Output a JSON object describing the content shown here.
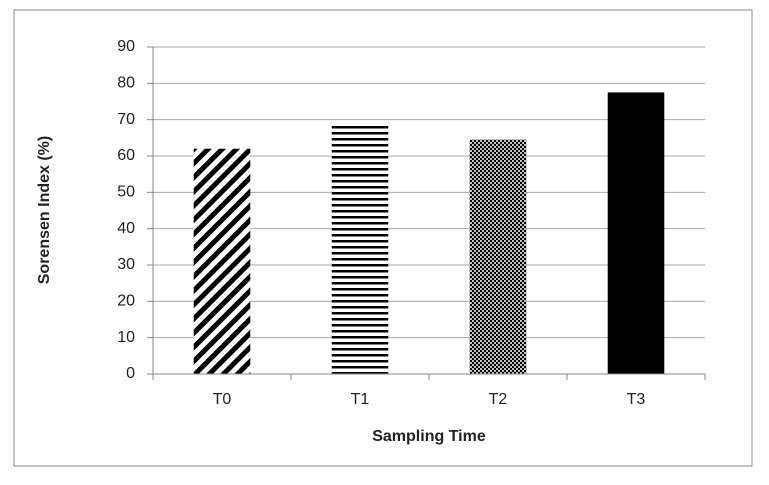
{
  "chart_data": {
    "type": "bar",
    "y_label": "Sorensen Index (%)",
    "x_label": "Sampling Time",
    "categories": [
      "T0",
      "T1",
      "T2",
      "T3"
    ],
    "values": [
      62,
      69,
      64.5,
      77.5
    ],
    "patterns": [
      "diagonal",
      "horizontal",
      "dots",
      "solid"
    ],
    "color": "#000000",
    "ylim": [
      0,
      90
    ],
    "yticks": [
      0,
      10,
      20,
      30,
      40,
      50,
      60,
      70,
      80,
      90
    ],
    "grid": true
  }
}
